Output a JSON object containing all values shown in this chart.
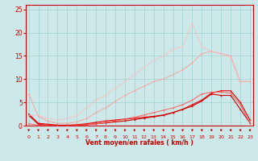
{
  "x": [
    0,
    1,
    2,
    3,
    4,
    5,
    6,
    7,
    8,
    9,
    10,
    11,
    12,
    13,
    14,
    15,
    16,
    17,
    18,
    19,
    20,
    21,
    22,
    23
  ],
  "series": [
    {
      "color": "#ee0000",
      "alpha": 1.0,
      "lw": 0.8,
      "ms": 2.0,
      "data": [
        2.5,
        0.5,
        0.3,
        0.1,
        0.1,
        0.2,
        0.4,
        0.7,
        1.0,
        1.2,
        1.4,
        1.6,
        1.8,
        2.0,
        2.3,
        2.8,
        3.5,
        4.5,
        5.5,
        7.0,
        7.5,
        7.5,
        5.0,
        1.2
      ]
    },
    {
      "color": "#cc0000",
      "alpha": 1.0,
      "lw": 0.8,
      "ms": 2.0,
      "data": [
        2.2,
        0.3,
        0.1,
        0.1,
        0.0,
        0.1,
        0.2,
        0.4,
        0.6,
        0.8,
        1.0,
        1.3,
        1.6,
        1.9,
        2.2,
        2.8,
        3.5,
        4.2,
        5.3,
        6.8,
        6.5,
        6.5,
        3.5,
        0.6
      ]
    },
    {
      "color": "#ff5555",
      "alpha": 0.85,
      "lw": 0.8,
      "ms": 2.0,
      "data": [
        0.4,
        0.1,
        0.1,
        0.0,
        0.0,
        0.1,
        0.2,
        0.4,
        0.7,
        1.0,
        1.4,
        1.8,
        2.3,
        2.8,
        3.3,
        3.8,
        4.5,
        5.5,
        6.8,
        7.2,
        7.2,
        7.0,
        4.5,
        0.5
      ]
    },
    {
      "color": "#ff9999",
      "alpha": 0.75,
      "lw": 0.8,
      "ms": 2.0,
      "data": [
        6.8,
        2.0,
        1.0,
        0.5,
        0.5,
        0.8,
        1.5,
        2.8,
        3.8,
        5.2,
        6.5,
        7.5,
        8.5,
        9.5,
        10.0,
        11.0,
        12.0,
        13.5,
        15.5,
        16.0,
        15.5,
        15.0,
        9.5,
        9.5
      ]
    },
    {
      "color": "#ffbbbb",
      "alpha": 0.65,
      "lw": 0.8,
      "ms": 2.0,
      "data": [
        2.2,
        2.2,
        1.5,
        1.2,
        1.5,
        2.2,
        3.8,
        5.5,
        6.5,
        8.0,
        9.5,
        11.0,
        12.5,
        14.0,
        15.0,
        16.5,
        17.0,
        22.0,
        17.0,
        16.0,
        15.5,
        14.5,
        9.0,
        null
      ]
    }
  ],
  "ylim": [
    0,
    26
  ],
  "yticks": [
    0,
    5,
    10,
    15,
    20,
    25
  ],
  "xticks": [
    0,
    1,
    2,
    3,
    4,
    5,
    6,
    7,
    8,
    9,
    10,
    11,
    12,
    13,
    14,
    15,
    16,
    17,
    18,
    19,
    20,
    21,
    22,
    23
  ],
  "xlabel": "Vent moyen/en rafales ( km/h )",
  "bg_color": "#cce8e8",
  "grid_color": "#99cccc",
  "axis_color": "#cc0000",
  "text_color": "#cc0000"
}
